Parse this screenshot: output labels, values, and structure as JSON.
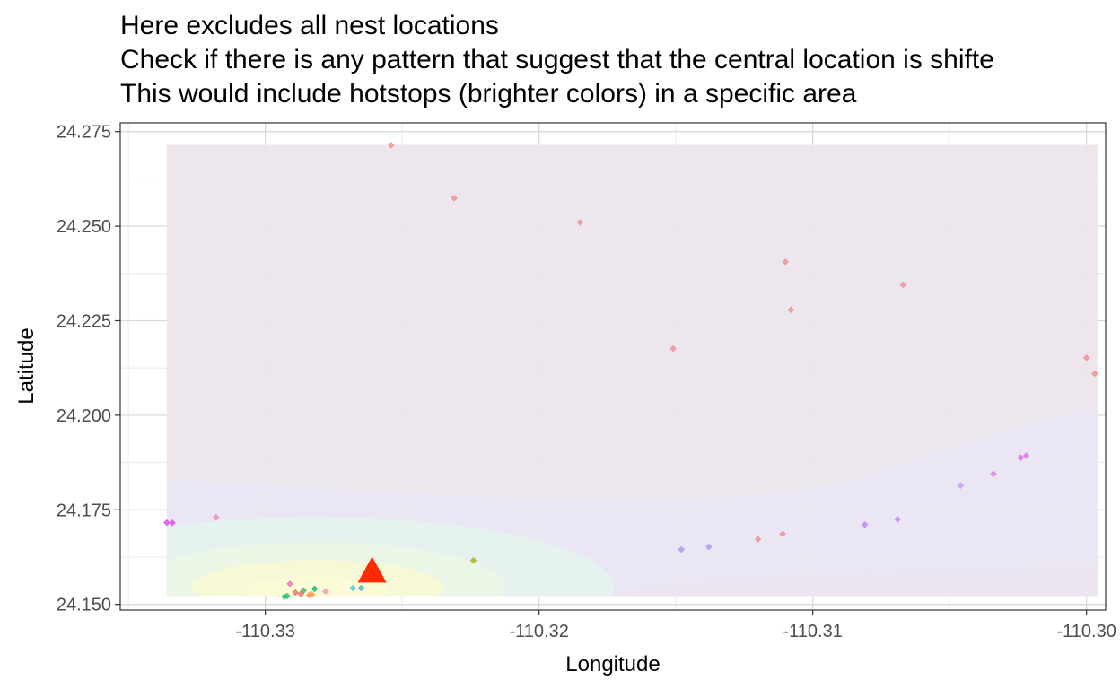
{
  "title_lines": [
    "Here excludes all nest locations",
    "Check if there is any pattern that suggest that the central location is shifte",
    "This would include hotstops (brighter colors) in a specific area"
  ],
  "chart_data": {
    "type": "scatter",
    "title": "Here excludes all nest locations\nCheck if there is any pattern that suggest that the central location is shifte\nThis would include hotstops (brighter colors) in a specific area",
    "xlabel": "Longitude",
    "ylabel": "Latitude",
    "xlim": [
      -110.3353,
      -110.2993
    ],
    "ylim": [
      24.1485,
      24.2773
    ],
    "x_ticks": [
      -110.33,
      -110.32,
      -110.31,
      -110.3
    ],
    "x_tick_labels": [
      "-110.33",
      "-110.32",
      "-110.31",
      "-110.30"
    ],
    "y_ticks": [
      24.15,
      24.175,
      24.2,
      24.225,
      24.25,
      24.275
    ],
    "y_tick_labels": [
      "24.150",
      "24.175",
      "24.200",
      "24.225",
      "24.250",
      "24.275"
    ],
    "grid": true,
    "legend": "none",
    "density_layer": {
      "x_range": [
        -110.3336,
        -110.2996
      ],
      "y_range": [
        24.1522,
        24.2715
      ],
      "hotspot": {
        "x": -110.3281,
        "y": 24.1546
      },
      "colors": {
        "background": "#ece4ec",
        "low": "#e9e6f3",
        "mid": "#e5f2ee",
        "high": "#f6f8d6",
        "peak": "#fbfbd8"
      }
    },
    "center_marker": {
      "x": -110.3261,
      "y": 24.1579,
      "shape": "triangle",
      "color": "#ff2a00"
    },
    "points": [
      {
        "x": -110.3254,
        "y": 24.2714,
        "color": "#f08a8a"
      },
      {
        "x": -110.3231,
        "y": 24.2574,
        "color": "#f08a8a"
      },
      {
        "x": -110.3185,
        "y": 24.251,
        "color": "#f08a8a"
      },
      {
        "x": -110.311,
        "y": 24.2406,
        "color": "#f08a8a"
      },
      {
        "x": -110.3067,
        "y": 24.2345,
        "color": "#f08a8a"
      },
      {
        "x": -110.3108,
        "y": 24.2279,
        "color": "#f08a8a"
      },
      {
        "x": -110.3151,
        "y": 24.2176,
        "color": "#f08a8a"
      },
      {
        "x": -110.3,
        "y": 24.2152,
        "color": "#f08a8a"
      },
      {
        "x": -110.2997,
        "y": 24.211,
        "color": "#f08a8a"
      },
      {
        "x": -110.3022,
        "y": 24.1893,
        "color": "#d86ae8"
      },
      {
        "x": -110.3024,
        "y": 24.1888,
        "color": "#d86ae8"
      },
      {
        "x": -110.3034,
        "y": 24.1845,
        "color": "#dd7ad8"
      },
      {
        "x": -110.3046,
        "y": 24.1814,
        "color": "#c890f0"
      },
      {
        "x": -110.3336,
        "y": 24.1716,
        "color": "#e040e8"
      },
      {
        "x": -110.3334,
        "y": 24.1716,
        "color": "#e040e8"
      },
      {
        "x": -110.3318,
        "y": 24.173,
        "color": "#f080b8"
      },
      {
        "x": -110.3069,
        "y": 24.1725,
        "color": "#c080f0"
      },
      {
        "x": -110.3081,
        "y": 24.1711,
        "color": "#c080f0"
      },
      {
        "x": -110.3111,
        "y": 24.1686,
        "color": "#f08a8a"
      },
      {
        "x": -110.312,
        "y": 24.1672,
        "color": "#f08a8a"
      },
      {
        "x": -110.3138,
        "y": 24.1652,
        "color": "#a896e8"
      },
      {
        "x": -110.3148,
        "y": 24.1645,
        "color": "#a896e8"
      },
      {
        "x": -110.3224,
        "y": 24.1616,
        "color": "#a8a820"
      },
      {
        "x": -110.3291,
        "y": 24.1554,
        "color": "#e86ab8"
      },
      {
        "x": -110.3268,
        "y": 24.1543,
        "color": "#40c0e0"
      },
      {
        "x": -110.3265,
        "y": 24.1543,
        "color": "#40b0d0"
      },
      {
        "x": -110.3282,
        "y": 24.1541,
        "color": "#00b070"
      },
      {
        "x": -110.3286,
        "y": 24.1537,
        "color": "#40b060"
      },
      {
        "x": -110.3278,
        "y": 24.1534,
        "color": "#f090c0"
      },
      {
        "x": -110.3289,
        "y": 24.1531,
        "color": "#e86a6a"
      },
      {
        "x": -110.3287,
        "y": 24.1528,
        "color": "#e86a6a"
      },
      {
        "x": -110.3283,
        "y": 24.1526,
        "color": "#ff9050"
      },
      {
        "x": -110.3292,
        "y": 24.1522,
        "color": "#20c060"
      },
      {
        "x": -110.3293,
        "y": 24.152,
        "color": "#20c060"
      },
      {
        "x": -110.3284,
        "y": 24.1524,
        "color": "#ff9050"
      }
    ]
  }
}
